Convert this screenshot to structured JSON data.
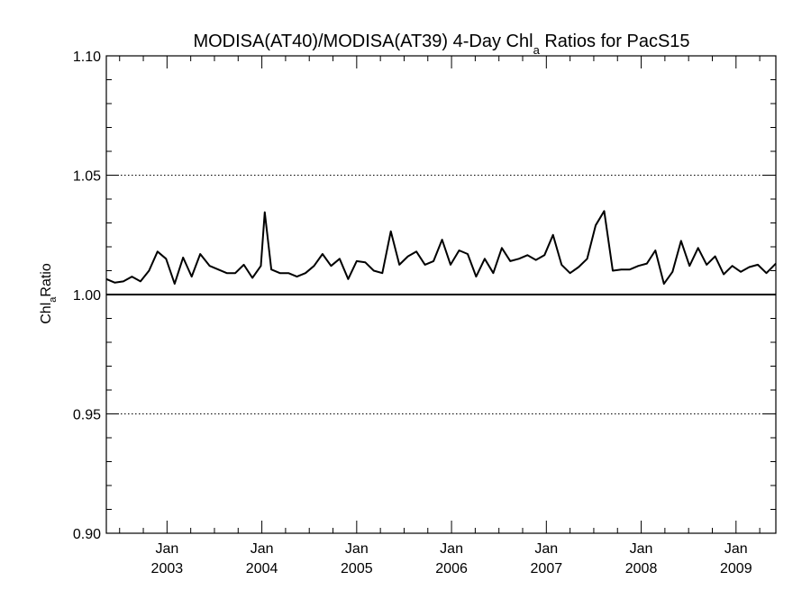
{
  "chart_data": {
    "type": "line",
    "title": {
      "main": "MODISA(AT40)/MODISA(AT39) 4-Day Chl",
      "sub": "a",
      "rest": " Ratios for PacS15"
    },
    "ylabel": {
      "main": "Chl",
      "sub": "a",
      "rest": "Ratio"
    },
    "xlabel": "",
    "ylim": [
      0.9,
      1.1
    ],
    "xlim": [
      2002.36,
      2009.42
    ],
    "yticks": [
      {
        "value": 0.9,
        "label": "0.90"
      },
      {
        "value": 0.95,
        "label": "0.95"
      },
      {
        "value": 1.0,
        "label": "1.00"
      },
      {
        "value": 1.05,
        "label": "1.05"
      },
      {
        "value": 1.1,
        "label": "1.10"
      }
    ],
    "ygrid_dotted": [
      0.95,
      1.05
    ],
    "reference_line": 1.0,
    "xticks": [
      {
        "value": 2003.0,
        "month": "Jan",
        "year": "2003"
      },
      {
        "value": 2004.0,
        "month": "Jan",
        "year": "2004"
      },
      {
        "value": 2005.0,
        "month": "Jan",
        "year": "2005"
      },
      {
        "value": 2006.0,
        "month": "Jan",
        "year": "2006"
      },
      {
        "value": 2007.0,
        "month": "Jan",
        "year": "2007"
      },
      {
        "value": 2008.0,
        "month": "Jan",
        "year": "2008"
      },
      {
        "value": 2009.0,
        "month": "Jan",
        "year": "2009"
      }
    ],
    "series": [
      {
        "color": "#000000",
        "x": [
          2002.36,
          2002.45,
          2002.54,
          2002.63,
          2002.72,
          2002.81,
          2002.9,
          2002.99,
          2003.08,
          2003.17,
          2003.26,
          2003.35,
          2003.45,
          2003.54,
          2003.63,
          2003.72,
          2003.81,
          2003.9,
          2003.99,
          2004.03,
          2004.1,
          2004.19,
          2004.28,
          2004.37,
          2004.46,
          2004.55,
          2004.64,
          2004.73,
          2004.82,
          2004.91,
          2005.0,
          2005.09,
          2005.18,
          2005.27,
          2005.36,
          2005.45,
          2005.54,
          2005.63,
          2005.72,
          2005.81,
          2005.9,
          2005.99,
          2006.08,
          2006.17,
          2006.26,
          2006.35,
          2006.44,
          2006.53,
          2006.62,
          2006.71,
          2006.8,
          2006.89,
          2006.98,
          2007.07,
          2007.16,
          2007.25,
          2007.34,
          2007.43,
          2007.52,
          2007.61,
          2007.7,
          2007.79,
          2007.88,
          2007.97,
          2008.06,
          2008.15,
          2008.24,
          2008.33,
          2008.42,
          2008.51,
          2008.6,
          2008.69,
          2008.78,
          2008.87,
          2008.96,
          2009.05,
          2009.14,
          2009.23,
          2009.32,
          2009.42
        ],
        "y": [
          1.0065,
          1.005,
          1.0055,
          1.0075,
          1.0055,
          1.01,
          1.018,
          1.015,
          1.0045,
          1.0155,
          1.0075,
          1.017,
          1.012,
          1.0105,
          1.009,
          1.009,
          1.0125,
          1.007,
          1.012,
          1.0345,
          1.0105,
          1.009,
          1.009,
          1.0075,
          1.009,
          1.012,
          1.017,
          1.012,
          1.015,
          1.0065,
          1.014,
          1.0135,
          1.01,
          1.009,
          1.0265,
          1.0125,
          1.016,
          1.018,
          1.0125,
          1.014,
          1.023,
          1.0125,
          1.0185,
          1.017,
          1.0075,
          1.015,
          1.009,
          1.0195,
          1.014,
          1.015,
          1.0165,
          1.0145,
          1.0165,
          1.025,
          1.0125,
          1.009,
          1.0115,
          1.015,
          1.029,
          1.035,
          1.01,
          1.0105,
          1.0105,
          1.012,
          1.013,
          1.0185,
          1.0045,
          1.0095,
          1.0225,
          1.012,
          1.0195,
          1.0125,
          1.016,
          1.0085,
          1.012,
          1.0095,
          1.0115,
          1.0125,
          1.009,
          1.013
        ]
      }
    ]
  }
}
